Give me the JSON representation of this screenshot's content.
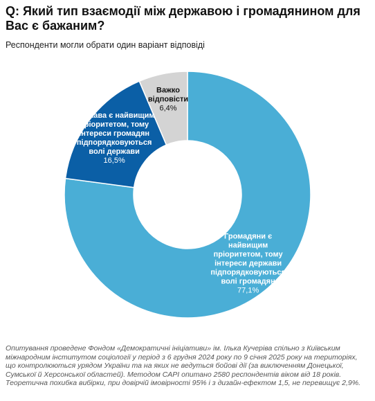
{
  "chart_data": {
    "type": "donut",
    "title": "Q: Який тип взаємодії між державою і громадянином для Вас є бажаним?",
    "subtitle": "Респонденти могли обрати один варіант відповіді",
    "categories": [
      "Громадяни є найвищим пріоритетом, тому інтереси держави підпорядковуються волі громадян",
      "Держава є найвищим пріоритетом, тому інтереси громадян підпорядковуються волі держави",
      "Важко відповісти"
    ],
    "values": [
      77.1,
      16.5,
      6.4
    ],
    "value_labels": [
      "77,1%",
      "16,5%",
      "6,4%"
    ],
    "colors": [
      "#4aaed6",
      "#0b5fa6",
      "#d4d4d4"
    ],
    "label_colors": [
      "#ffffff",
      "#ffffff",
      "#111111"
    ],
    "note": "Опитування проведене Фондом «Демократичні ініціативи» ім. Ілька Кучеріва спільно з Київським міжнародним інститутом соціології у період з 6 грудня 2024 року по 9 січня 2025 року на територіях, що контролюються урядом України та на яких не ведуться бойові дії (за виключенням Донецької, Сумської й Херсонської областей). Методом CAPI опитано 2580 респондентів віком від 18 років. Теоретична похибка вибірки, при довірчій імовірності 95% і з дизайн-ефектом 1,5, не перевищує 2,9%."
  }
}
